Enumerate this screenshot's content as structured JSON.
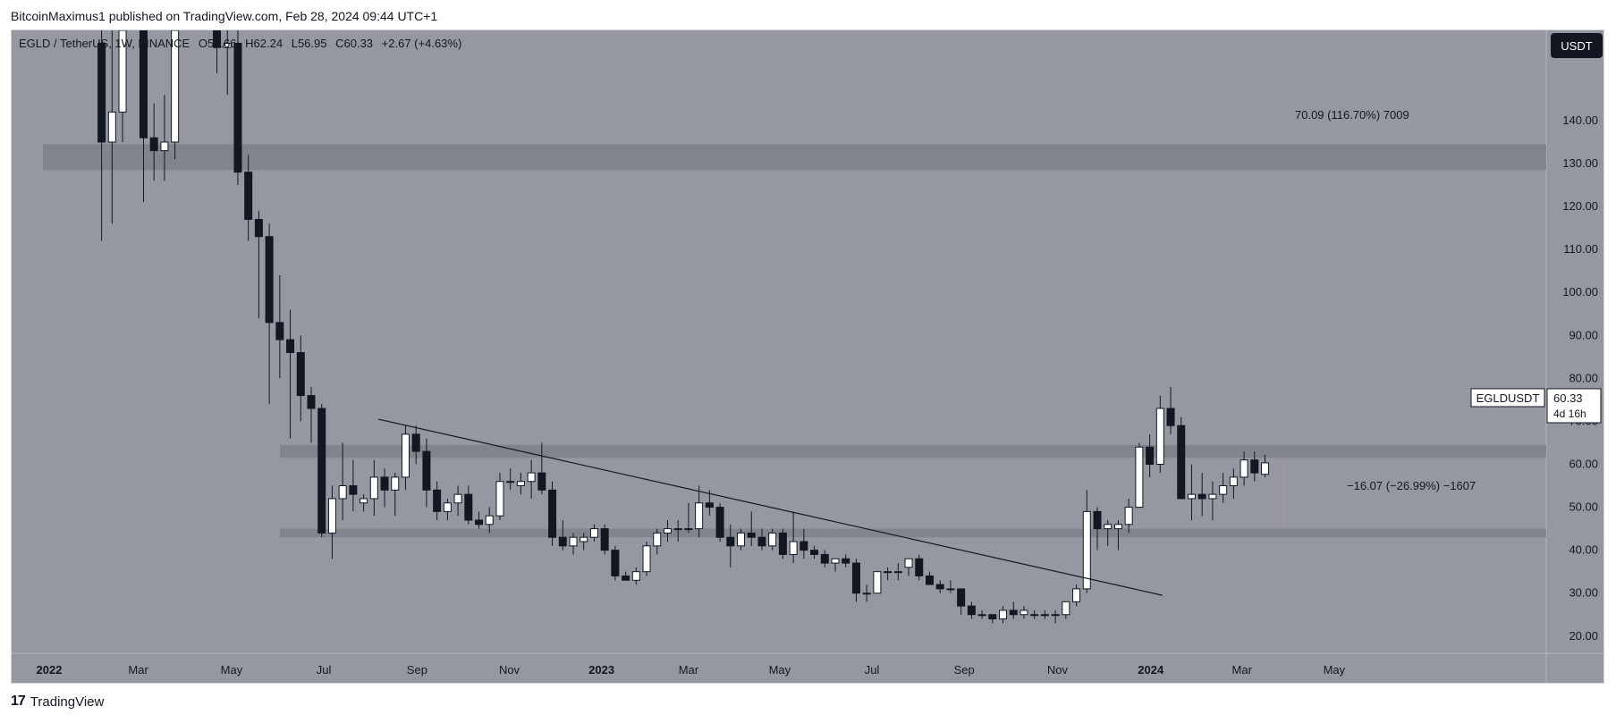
{
  "header": {
    "publish_text": "BitcoinMaximus1 published on TradingView.com, Feb 28, 2024 09:44 UTC+1"
  },
  "symbol_bar": {
    "symbol": "EGLD / TetherUS, 1W, BINANCE",
    "o_label": "O",
    "o_value": "57.66",
    "h_label": "H",
    "h_value": "62.24",
    "l_label": "L",
    "l_value": "56.95",
    "c_label": "C",
    "c_value": "60.33",
    "change": "+2.67 (+4.63%)"
  },
  "currency_button": "USDT",
  "price_label": {
    "ticker": "EGLDUSDT",
    "price": "60.33",
    "countdown": "4d 16h"
  },
  "measure_labels": {
    "upper": "70.09 (116.70%) 7009",
    "lower": "−16.07 (−26.99%) −1607"
  },
  "footer": {
    "brand": "TradingView",
    "logo_icon": "tradingview-logo-icon"
  },
  "colors": {
    "background": "#9598a1",
    "zone": "#7d818a",
    "candle_up": "#ffffff",
    "candle_down": "#131722",
    "text": "#131722",
    "axis_bg": "#9598a1"
  },
  "chart_data": {
    "type": "candlestick",
    "timeframe": "1W",
    "ylim": [
      16,
      161
    ],
    "y_ticks": [
      20,
      30,
      40,
      50,
      60,
      70,
      80,
      90,
      100,
      110,
      120,
      130,
      140
    ],
    "x_ticks": [
      {
        "label": "2022",
        "week": 0
      },
      {
        "label": "Mar",
        "week": 8.5
      },
      {
        "label": "May",
        "week": 17.4
      },
      {
        "label": "Jul",
        "week": 26.2
      },
      {
        "label": "Sep",
        "week": 35.1
      },
      {
        "label": "Nov",
        "week": 43.9
      },
      {
        "label": "2023",
        "week": 52.7
      },
      {
        "label": "Mar",
        "week": 61.0
      },
      {
        "label": "May",
        "week": 69.7
      },
      {
        "label": "Jul",
        "week": 78.5
      },
      {
        "label": "Sep",
        "week": 87.3
      },
      {
        "label": "Nov",
        "week": 96.2
      },
      {
        "label": "2024",
        "week": 105.1
      },
      {
        "label": "Mar",
        "week": 113.8
      },
      {
        "label": "May",
        "week": 122.6
      }
    ],
    "zones": [
      {
        "name": "resistance-130",
        "from": 128.5,
        "to": 134.5
      },
      {
        "name": "horizontal-63",
        "from": 61.5,
        "to": 64.5
      },
      {
        "name": "support-44",
        "from": 43,
        "to": 45
      }
    ],
    "trendline": {
      "start": {
        "week": 31.4,
        "value": 70.5
      },
      "end": {
        "week": 106.2,
        "value": 29.5
      }
    },
    "measure_marker": {
      "week": 117.5,
      "from": 44,
      "to": 60.33
    },
    "candles": [
      {
        "w": 5,
        "o": 158,
        "h": 161,
        "l": 112,
        "c": 135
      },
      {
        "w": 6,
        "o": 135,
        "h": 161,
        "l": 116,
        "c": 142
      },
      {
        "w": 7,
        "o": 142,
        "h": 161,
        "l": 135,
        "c": 161
      },
      {
        "w": 9,
        "o": 161,
        "h": 161,
        "l": 121,
        "c": 136
      },
      {
        "w": 10,
        "o": 136,
        "h": 144,
        "l": 126,
        "c": 133
      },
      {
        "w": 11,
        "o": 133,
        "h": 146,
        "l": 126,
        "c": 135
      },
      {
        "w": 12,
        "o": 135,
        "h": 161,
        "l": 131,
        "c": 161
      },
      {
        "w": 16,
        "o": 161,
        "h": 161,
        "l": 151,
        "c": 157
      },
      {
        "w": 17,
        "o": 157,
        "h": 161,
        "l": 146,
        "c": 158
      },
      {
        "w": 18,
        "o": 158,
        "h": 161,
        "l": 125,
        "c": 128
      },
      {
        "w": 19,
        "o": 128,
        "h": 132,
        "l": 112,
        "c": 117
      },
      {
        "w": 20,
        "o": 117,
        "h": 119,
        "l": 94,
        "c": 113
      },
      {
        "w": 21,
        "o": 113,
        "h": 116,
        "l": 74,
        "c": 93
      },
      {
        "w": 22,
        "o": 93,
        "h": 104,
        "l": 80,
        "c": 89
      },
      {
        "w": 23,
        "o": 89,
        "h": 96,
        "l": 66,
        "c": 86
      },
      {
        "w": 24,
        "o": 86,
        "h": 90,
        "l": 70,
        "c": 76
      },
      {
        "w": 25,
        "o": 76,
        "h": 78,
        "l": 65,
        "c": 73
      },
      {
        "w": 26,
        "o": 73,
        "h": 74,
        "l": 43,
        "c": 44
      },
      {
        "w": 27,
        "o": 44,
        "h": 55,
        "l": 38,
        "c": 52
      },
      {
        "w": 28,
        "o": 52,
        "h": 65,
        "l": 47,
        "c": 55
      },
      {
        "w": 29,
        "o": 55,
        "h": 61,
        "l": 49,
        "c": 53
      },
      {
        "w": 30,
        "o": 51,
        "h": 53,
        "l": 49,
        "c": 52
      },
      {
        "w": 31,
        "o": 52,
        "h": 61,
        "l": 48,
        "c": 57
      },
      {
        "w": 32,
        "o": 57,
        "h": 59,
        "l": 50,
        "c": 54
      },
      {
        "w": 33,
        "o": 54,
        "h": 58,
        "l": 48,
        "c": 57
      },
      {
        "w": 34,
        "o": 57,
        "h": 69,
        "l": 54,
        "c": 67
      },
      {
        "w": 35,
        "o": 67,
        "h": 69,
        "l": 60,
        "c": 63
      },
      {
        "w": 36,
        "o": 63,
        "h": 66,
        "l": 50,
        "c": 54
      },
      {
        "w": 37,
        "o": 54,
        "h": 56,
        "l": 47,
        "c": 49
      },
      {
        "w": 38,
        "o": 49,
        "h": 52,
        "l": 47,
        "c": 51
      },
      {
        "w": 39,
        "o": 51,
        "h": 55,
        "l": 48,
        "c": 53
      },
      {
        "w": 40,
        "o": 53,
        "h": 55,
        "l": 46,
        "c": 47
      },
      {
        "w": 41,
        "o": 47,
        "h": 49,
        "l": 45,
        "c": 46
      },
      {
        "w": 42,
        "o": 46,
        "h": 50,
        "l": 44,
        "c": 48
      },
      {
        "w": 43,
        "o": 48,
        "h": 58,
        "l": 47,
        "c": 56
      },
      {
        "w": 44,
        "o": 56,
        "h": 59,
        "l": 54,
        "c": 56
      },
      {
        "w": 45,
        "o": 55,
        "h": 58,
        "l": 53,
        "c": 56
      },
      {
        "w": 46,
        "o": 56,
        "h": 61,
        "l": 52,
        "c": 58
      },
      {
        "w": 47,
        "o": 58,
        "h": 65,
        "l": 53,
        "c": 54
      },
      {
        "w": 48,
        "o": 54,
        "h": 56,
        "l": 41,
        "c": 43
      },
      {
        "w": 49,
        "o": 43,
        "h": 47,
        "l": 40,
        "c": 41
      },
      {
        "w": 50,
        "o": 41,
        "h": 44,
        "l": 39,
        "c": 43
      },
      {
        "w": 51,
        "o": 42,
        "h": 44,
        "l": 40,
        "c": 43
      },
      {
        "w": 52,
        "o": 43,
        "h": 46,
        "l": 42,
        "c": 45
      },
      {
        "w": 53,
        "o": 45,
        "h": 46,
        "l": 39,
        "c": 40
      },
      {
        "w": 54,
        "o": 40,
        "h": 41,
        "l": 33,
        "c": 34
      },
      {
        "w": 55,
        "o": 34,
        "h": 35,
        "l": 33,
        "c": 33
      },
      {
        "w": 56,
        "o": 33,
        "h": 36,
        "l": 32,
        "c": 35
      },
      {
        "w": 57,
        "o": 35,
        "h": 42,
        "l": 34,
        "c": 41
      },
      {
        "w": 58,
        "o": 41,
        "h": 45,
        "l": 39,
        "c": 44
      },
      {
        "w": 59,
        "o": 44,
        "h": 47,
        "l": 42,
        "c": 45
      },
      {
        "w": 60,
        "o": 45,
        "h": 47,
        "l": 42,
        "c": 45
      },
      {
        "w": 61,
        "o": 45,
        "h": 51,
        "l": 44,
        "c": 45
      },
      {
        "w": 62,
        "o": 45,
        "h": 55,
        "l": 43,
        "c": 51
      },
      {
        "w": 63,
        "o": 51,
        "h": 54,
        "l": 48,
        "c": 50
      },
      {
        "w": 64,
        "o": 50,
        "h": 51,
        "l": 42,
        "c": 43
      },
      {
        "w": 65,
        "o": 43,
        "h": 46,
        "l": 36,
        "c": 41
      },
      {
        "w": 66,
        "o": 41,
        "h": 45,
        "l": 40,
        "c": 44
      },
      {
        "w": 67,
        "o": 44,
        "h": 49,
        "l": 41,
        "c": 43
      },
      {
        "w": 68,
        "o": 43,
        "h": 45,
        "l": 40,
        "c": 41
      },
      {
        "w": 69,
        "o": 41,
        "h": 45,
        "l": 40,
        "c": 44
      },
      {
        "w": 70,
        "o": 44,
        "h": 45,
        "l": 38,
        "c": 39
      },
      {
        "w": 71,
        "o": 39,
        "h": 49,
        "l": 37,
        "c": 42
      },
      {
        "w": 72,
        "o": 42,
        "h": 45,
        "l": 38,
        "c": 40
      },
      {
        "w": 73,
        "o": 40,
        "h": 41,
        "l": 38,
        "c": 39
      },
      {
        "w": 74,
        "o": 39,
        "h": 40,
        "l": 36,
        "c": 37
      },
      {
        "w": 75,
        "o": 37,
        "h": 38,
        "l": 35,
        "c": 38
      },
      {
        "w": 76,
        "o": 38,
        "h": 39,
        "l": 36,
        "c": 37
      },
      {
        "w": 77,
        "o": 37,
        "h": 38,
        "l": 28,
        "c": 30
      },
      {
        "w": 78,
        "o": 30,
        "h": 32,
        "l": 28,
        "c": 30
      },
      {
        "w": 79,
        "o": 30,
        "h": 35,
        "l": 30,
        "c": 35
      },
      {
        "w": 80,
        "o": 35,
        "h": 36,
        "l": 33,
        "c": 35
      },
      {
        "w": 81,
        "o": 35,
        "h": 37,
        "l": 33,
        "c": 35
      },
      {
        "w": 82,
        "o": 36,
        "h": 38,
        "l": 34,
        "c": 38
      },
      {
        "w": 83,
        "o": 38,
        "h": 39,
        "l": 33,
        "c": 34
      },
      {
        "w": 84,
        "o": 34,
        "h": 35,
        "l": 32,
        "c": 32
      },
      {
        "w": 85,
        "o": 32,
        "h": 33,
        "l": 30,
        "c": 31
      },
      {
        "w": 86,
        "o": 31,
        "h": 33,
        "l": 30,
        "c": 31
      },
      {
        "w": 87,
        "o": 31,
        "h": 31,
        "l": 25,
        "c": 27
      },
      {
        "w": 88,
        "o": 27,
        "h": 28,
        "l": 24,
        "c": 25
      },
      {
        "w": 89,
        "o": 25,
        "h": 26,
        "l": 24,
        "c": 25
      },
      {
        "w": 90,
        "o": 25,
        "h": 25,
        "l": 23,
        "c": 24
      },
      {
        "w": 91,
        "o": 24,
        "h": 27,
        "l": 23,
        "c": 26
      },
      {
        "w": 92,
        "o": 26,
        "h": 28,
        "l": 24,
        "c": 25
      },
      {
        "w": 93,
        "o": 25,
        "h": 27,
        "l": 24,
        "c": 26
      },
      {
        "w": 94,
        "o": 25,
        "h": 26,
        "l": 24,
        "c": 25
      },
      {
        "w": 95,
        "o": 25,
        "h": 26,
        "l": 24,
        "c": 25
      },
      {
        "w": 96,
        "o": 25,
        "h": 26,
        "l": 23,
        "c": 25
      },
      {
        "w": 97,
        "o": 25,
        "h": 28,
        "l": 24,
        "c": 28
      },
      {
        "w": 98,
        "o": 28,
        "h": 32,
        "l": 27,
        "c": 31
      },
      {
        "w": 99,
        "o": 31,
        "h": 54,
        "l": 30,
        "c": 49
      },
      {
        "w": 100,
        "o": 49,
        "h": 50,
        "l": 40,
        "c": 45
      },
      {
        "w": 101,
        "o": 45,
        "h": 47,
        "l": 41,
        "c": 46
      },
      {
        "w": 102,
        "o": 45,
        "h": 47,
        "l": 40,
        "c": 46
      },
      {
        "w": 103,
        "o": 46,
        "h": 52,
        "l": 44,
        "c": 50
      },
      {
        "w": 104,
        "o": 50,
        "h": 65,
        "l": 50,
        "c": 64
      },
      {
        "w": 105,
        "o": 64,
        "h": 67,
        "l": 57,
        "c": 60
      },
      {
        "w": 106,
        "o": 60,
        "h": 76,
        "l": 58,
        "c": 73
      },
      {
        "w": 107,
        "o": 73,
        "h": 78,
        "l": 67,
        "c": 69
      },
      {
        "w": 108,
        "o": 69,
        "h": 71,
        "l": 52,
        "c": 52
      },
      {
        "w": 109,
        "o": 52,
        "h": 60,
        "l": 47,
        "c": 53
      },
      {
        "w": 110,
        "o": 53,
        "h": 58,
        "l": 48,
        "c": 52
      },
      {
        "w": 111,
        "o": 52,
        "h": 56,
        "l": 47,
        "c": 53
      },
      {
        "w": 112,
        "o": 53,
        "h": 58,
        "l": 51,
        "c": 55
      },
      {
        "w": 113,
        "o": 55,
        "h": 59,
        "l": 52,
        "c": 57
      },
      {
        "w": 114,
        "o": 57,
        "h": 63,
        "l": 55,
        "c": 61
      },
      {
        "w": 115,
        "o": 61,
        "h": 63,
        "l": 56,
        "c": 58
      },
      {
        "w": 116,
        "o": 57.66,
        "h": 62.24,
        "l": 56.95,
        "c": 60.33
      }
    ]
  }
}
